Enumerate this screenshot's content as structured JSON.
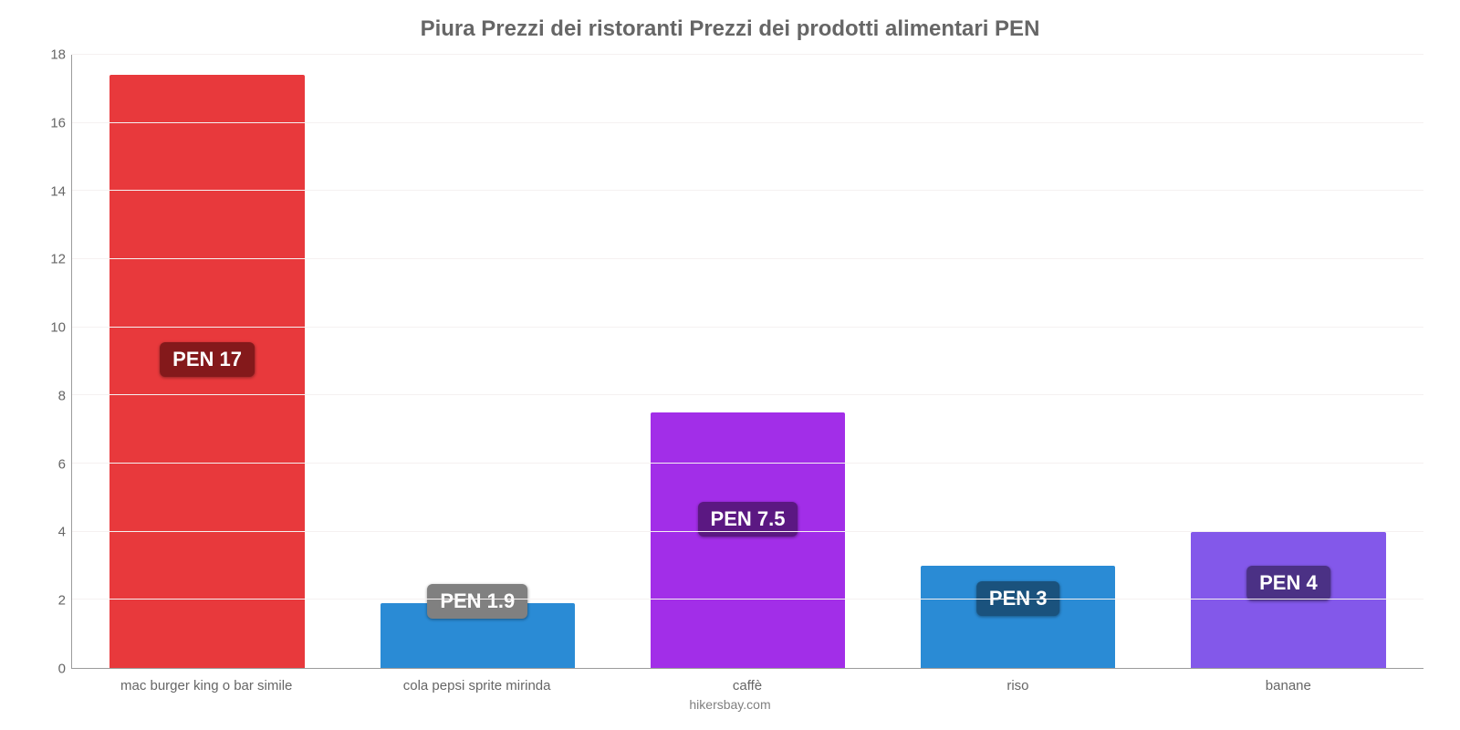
{
  "chart": {
    "type": "bar",
    "title": "Piura Prezzi dei ristoranti Prezzi dei prodotti alimentari PEN",
    "title_fontsize": 24,
    "title_color": "#666666",
    "footer": "hikersbay.com",
    "footer_color": "#808080",
    "background_color": "#ffffff",
    "grid_color": "#f5f1f1",
    "axis_color": "#9c9c9c",
    "tick_color": "#666666",
    "ymin": 0,
    "ymax": 18,
    "ytick_step": 2,
    "yticks": [
      "0",
      "2",
      "4",
      "6",
      "8",
      "10",
      "12",
      "14",
      "16",
      "18"
    ],
    "bar_width_pct": 72,
    "label_fontsize": 15,
    "value_label_fontsize": 22,
    "bars": [
      {
        "category": "mac burger king o bar simile",
        "value": 17.4,
        "label": "PEN 17",
        "fill": "#e8393c",
        "label_bg": "#84191b",
        "label_vpos_pct": 55
      },
      {
        "category": "cola pepsi sprite mirinda",
        "value": 1.9,
        "label": "PEN 1.9",
        "fill": "#2a8bd5",
        "label_bg": "#808080",
        "label_vpos_pct": 130
      },
      {
        "category": "caffè",
        "value": 7.5,
        "label": "PEN 7.5",
        "fill": "#a22ee8",
        "label_bg": "#5b1882",
        "label_vpos_pct": 65
      },
      {
        "category": "riso",
        "value": 3.0,
        "label": "PEN 3",
        "fill": "#2a8bd5",
        "label_bg": "#1a527d",
        "label_vpos_pct": 85
      },
      {
        "category": "banane",
        "value": 4.0,
        "label": "PEN 4",
        "fill": "#8358ea",
        "label_bg": "#4b3185",
        "label_vpos_pct": 75
      }
    ]
  }
}
